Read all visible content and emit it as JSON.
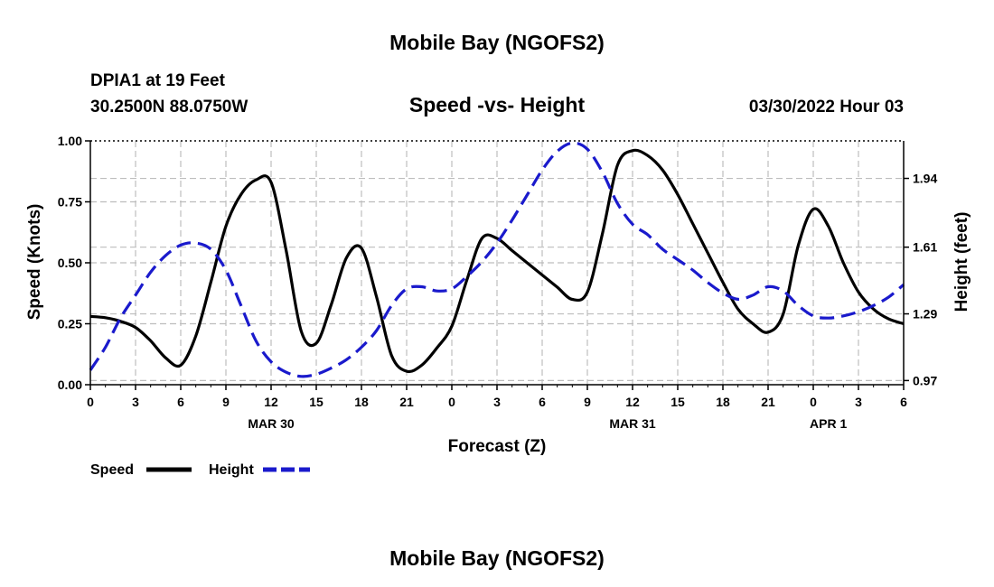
{
  "header": {
    "title": "Mobile Bay (NGOFS2)",
    "station": "DPIA1 at 19 Feet",
    "coords": "30.2500N 88.0750W",
    "datetime": "03/30/2022 Hour 03",
    "footer_title": "Mobile Bay (NGOFS2)"
  },
  "chart_data": {
    "type": "line",
    "title": "Speed -vs- Height",
    "xlabel": "Forecast (Z)",
    "ylabel": "Speed (Knots)",
    "y2label": "Height (feet)",
    "x_start": "2022-03-30 00Z",
    "ylim": [
      0,
      1.0
    ],
    "y2lim": [
      0.95,
      2.12
    ],
    "y_ticks": [
      "0.00",
      "0.25",
      "0.50",
      "0.75",
      "1.00"
    ],
    "y2_ticks": [
      "0.97",
      "1.29",
      "1.61",
      "1.94"
    ],
    "x_ticks": [
      "0",
      "3",
      "6",
      "9",
      "12",
      "15",
      "18",
      "21",
      "0",
      "3",
      "6",
      "9",
      "12",
      "15",
      "18",
      "21",
      "0",
      "3",
      "6"
    ],
    "day_labels": [
      {
        "label": "MAR 30",
        "hour": 12
      },
      {
        "label": "MAR 31",
        "hour": 36
      },
      {
        "label": "APR 1",
        "hour": 49
      }
    ],
    "grid": true,
    "legend_position": "bottom-left",
    "series": [
      {
        "name": "Speed",
        "axis": "left",
        "color": "#000000",
        "style": "solid",
        "x": [
          0,
          1,
          2,
          3,
          4,
          5,
          6,
          7,
          8,
          9,
          10,
          11,
          12,
          13,
          14,
          15,
          16,
          17,
          18,
          19,
          20,
          21,
          22,
          23,
          24,
          25,
          26,
          27,
          28,
          29,
          30,
          31,
          32,
          33,
          34,
          35,
          36,
          37,
          38,
          39,
          40,
          41,
          42,
          43,
          44,
          45,
          46,
          47,
          48,
          49,
          50,
          51,
          52,
          53,
          54
        ],
        "values": [
          0.28,
          0.275,
          0.26,
          0.235,
          0.18,
          0.11,
          0.08,
          0.2,
          0.42,
          0.65,
          0.78,
          0.84,
          0.83,
          0.55,
          0.22,
          0.17,
          0.33,
          0.52,
          0.56,
          0.36,
          0.12,
          0.055,
          0.08,
          0.15,
          0.24,
          0.43,
          0.6,
          0.6,
          0.55,
          0.5,
          0.45,
          0.4,
          0.35,
          0.38,
          0.62,
          0.9,
          0.96,
          0.94,
          0.88,
          0.78,
          0.66,
          0.54,
          0.42,
          0.31,
          0.25,
          0.215,
          0.29,
          0.57,
          0.72,
          0.65,
          0.5,
          0.38,
          0.31,
          0.27,
          0.25
        ]
      },
      {
        "name": "Height",
        "axis": "right",
        "color": "#1a1acc",
        "style": "dashed",
        "x": [
          0,
          1,
          2,
          3,
          4,
          5,
          6,
          7,
          8,
          9,
          10,
          11,
          12,
          13,
          14,
          15,
          16,
          17,
          18,
          19,
          20,
          21,
          22,
          23,
          24,
          25,
          26,
          27,
          28,
          29,
          30,
          31,
          32,
          33,
          34,
          35,
          36,
          37,
          38,
          39,
          40,
          41,
          42,
          43,
          44,
          45,
          46,
          47,
          48,
          49,
          50,
          51,
          52,
          53,
          54
        ],
        "values": [
          1.02,
          1.13,
          1.27,
          1.38,
          1.49,
          1.57,
          1.62,
          1.63,
          1.6,
          1.5,
          1.33,
          1.16,
          1.06,
          1.01,
          0.99,
          1.0,
          1.03,
          1.07,
          1.13,
          1.21,
          1.33,
          1.41,
          1.42,
          1.4,
          1.41,
          1.47,
          1.54,
          1.63,
          1.74,
          1.86,
          1.98,
          2.07,
          2.11,
          2.08,
          1.97,
          1.82,
          1.72,
          1.67,
          1.6,
          1.55,
          1.5,
          1.44,
          1.39,
          1.36,
          1.38,
          1.42,
          1.4,
          1.33,
          1.28,
          1.27,
          1.28,
          1.3,
          1.33,
          1.37,
          1.43
        ]
      }
    ]
  }
}
